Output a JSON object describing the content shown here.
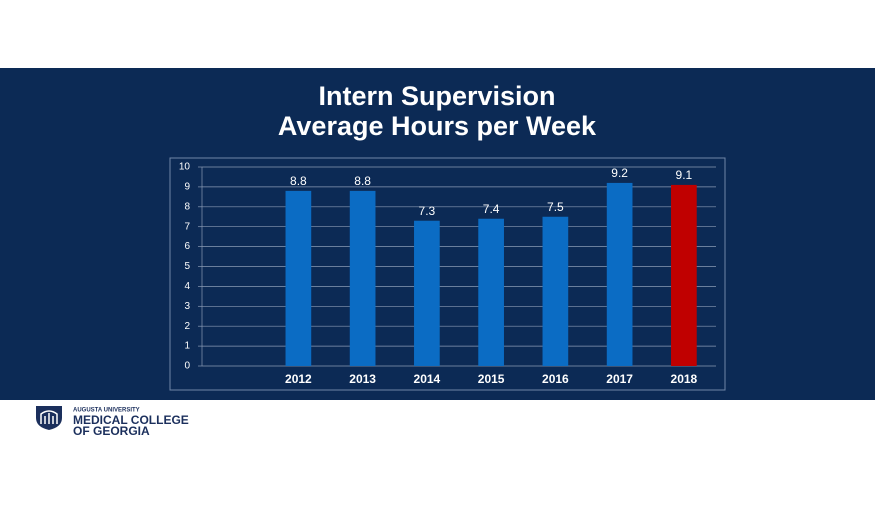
{
  "chart_data": {
    "type": "bar",
    "title": [
      "Intern Supervision",
      "Average Hours per Week"
    ],
    "categories": [
      null,
      "2012",
      "2013",
      "2014",
      "2015",
      "2016",
      "2017",
      "2018"
    ],
    "values": [
      null,
      8.8,
      8.8,
      7.3,
      7.4,
      7.5,
      9.2,
      9.1
    ],
    "colors": [
      null,
      "#0b6cc4",
      "#0b6cc4",
      "#0b6cc4",
      "#0b6cc4",
      "#0b6cc4",
      "#0b6cc4",
      "#c00000"
    ],
    "ylim": [
      0,
      10
    ],
    "yticks": [
      0,
      1,
      2,
      3,
      4,
      5,
      6,
      7,
      8,
      9,
      10
    ],
    "grid": true,
    "data_labels": true
  },
  "footer": {
    "university": "AUGUSTA UNIVERSITY",
    "college": [
      "MEDICAL COLLEGE",
      "OF GEORGIA"
    ]
  }
}
